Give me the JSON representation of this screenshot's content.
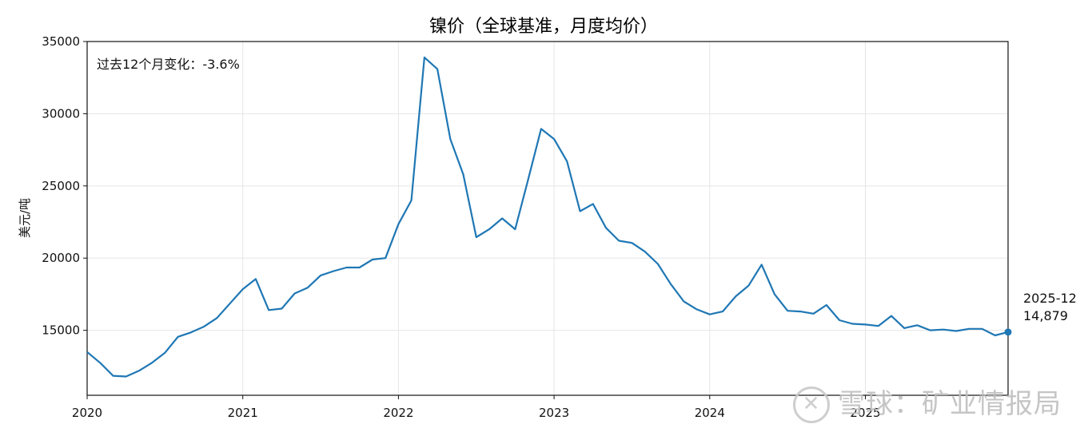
{
  "chart_data": {
    "type": "line",
    "title": "镍价（全球基准，月度均价）",
    "ylabel": "美元/吨",
    "xlabel": "",
    "ylim": [
      10500,
      35000
    ],
    "yticks": [
      15000,
      20000,
      25000,
      30000,
      35000
    ],
    "xticks": [
      "2020",
      "2021",
      "2022",
      "2023",
      "2024",
      "2025"
    ],
    "grid": true,
    "annotation": "过去12个月变化：-3.6%",
    "last_label_date": "2025-12",
    "last_label_value": "14,879",
    "series": [
      {
        "color": "#1f77b4",
        "x": [
          "2020-01",
          "2020-02",
          "2020-03",
          "2020-04",
          "2020-05",
          "2020-06",
          "2020-07",
          "2020-08",
          "2020-09",
          "2020-10",
          "2020-11",
          "2020-12",
          "2021-01",
          "2021-02",
          "2021-03",
          "2021-04",
          "2021-05",
          "2021-06",
          "2021-07",
          "2021-08",
          "2021-09",
          "2021-10",
          "2021-11",
          "2021-12",
          "2022-01",
          "2022-02",
          "2022-03",
          "2022-04",
          "2022-05",
          "2022-06",
          "2022-07",
          "2022-08",
          "2022-09",
          "2022-10",
          "2022-11",
          "2022-12",
          "2023-01",
          "2023-02",
          "2023-03",
          "2023-04",
          "2023-05",
          "2023-06",
          "2023-07",
          "2023-08",
          "2023-09",
          "2023-10",
          "2023-11",
          "2023-12",
          "2024-01",
          "2024-02",
          "2024-03",
          "2024-04",
          "2024-05",
          "2024-06",
          "2024-07",
          "2024-08",
          "2024-09",
          "2024-10",
          "2024-11",
          "2024-12",
          "2025-01",
          "2025-02",
          "2025-03",
          "2025-04",
          "2025-05",
          "2025-06",
          "2025-07",
          "2025-08",
          "2025-09",
          "2025-10",
          "2025-11",
          "2025-12"
        ],
        "values": [
          13500,
          12750,
          11850,
          11800,
          12200,
          12750,
          13450,
          14550,
          14850,
          15250,
          15850,
          16850,
          17850,
          18550,
          16400,
          16500,
          17550,
          17950,
          18800,
          19100,
          19350,
          19350,
          19900,
          20000,
          22350,
          24000,
          33900,
          33100,
          28250,
          25800,
          21450,
          22000,
          22750,
          22000,
          25450,
          28950,
          28250,
          26700,
          23250,
          23750,
          22100,
          21200,
          21050,
          20450,
          19600,
          18200,
          17000,
          16450,
          16100,
          16300,
          17350,
          18100,
          19550,
          17500,
          16350,
          16300,
          16150,
          16750,
          15700,
          15450,
          15400,
          15300,
          16000,
          15150,
          15350,
          15000,
          15050,
          14950,
          15100,
          15100,
          14650,
          14879
        ]
      }
    ]
  },
  "watermark": {
    "icon": "snowball-logo-icon",
    "text": "雪球：矿业情报局"
  }
}
